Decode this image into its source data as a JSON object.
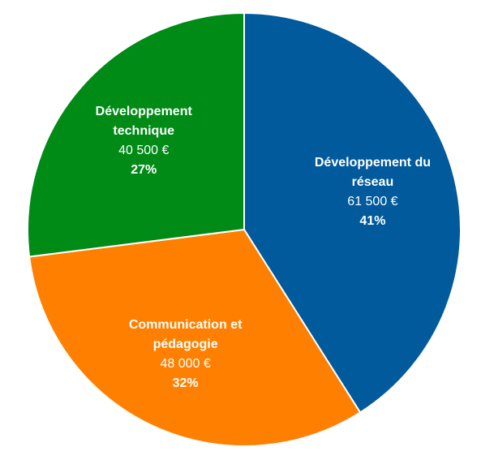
{
  "chart_data": {
    "type": "pie",
    "title": "",
    "legend": "none",
    "slices": [
      {
        "label_lines": [
          "Développement du",
          "réseau"
        ],
        "amount_label": "61 500 €",
        "value": 61500,
        "percent_label": "41%",
        "percent": 41,
        "color": "#005a9c"
      },
      {
        "label_lines": [
          "Communication et",
          "pédagogie"
        ],
        "amount_label": "48 000 €",
        "value": 48000,
        "percent_label": "32%",
        "percent": 32,
        "color": "#ff8000"
      },
      {
        "label_lines": [
          "Développement",
          "technique"
        ],
        "amount_label": "40 500 €",
        "value": 40500,
        "percent_label": "27%",
        "percent": 27,
        "color": "#008a16"
      }
    ]
  }
}
